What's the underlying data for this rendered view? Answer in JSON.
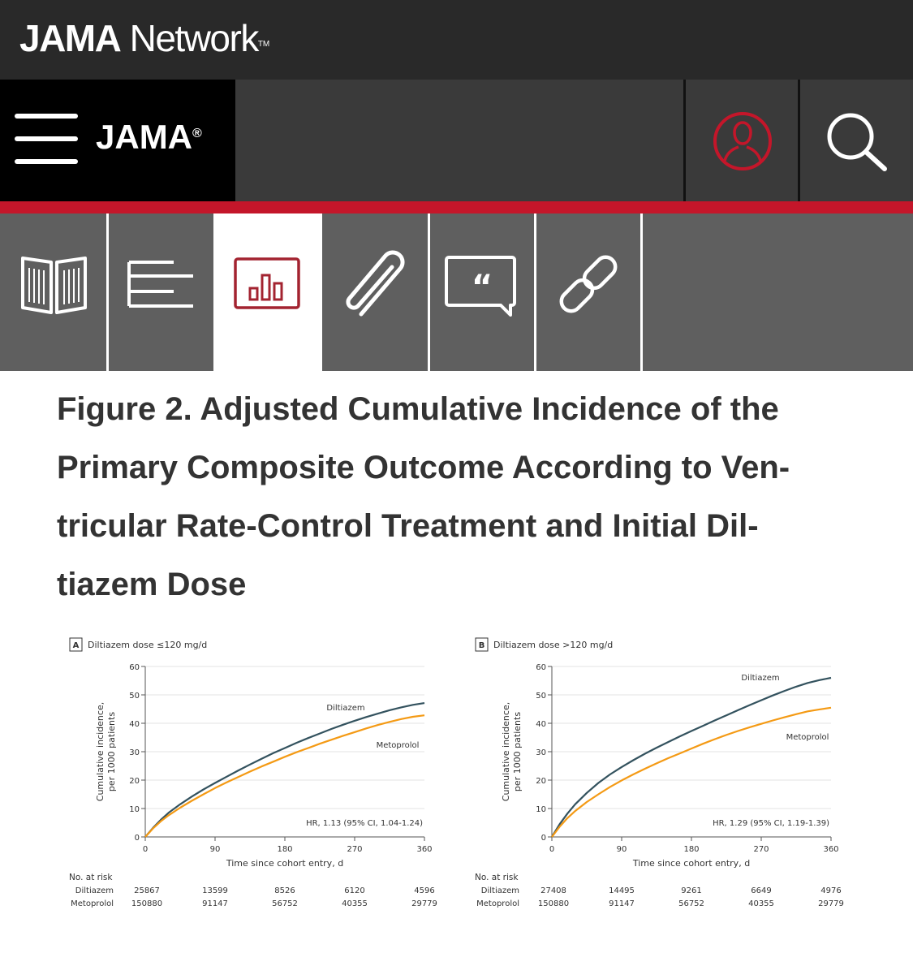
{
  "brand": {
    "bold": "JAMA",
    "rest": " Network",
    "tm": "TM"
  },
  "nav": {
    "journal": "JAMA",
    "journal_mark": "®"
  },
  "tabs": [
    {
      "name": "tab-article",
      "icon": "open-book-icon"
    },
    {
      "name": "tab-sections",
      "icon": "list-lines-icon"
    },
    {
      "name": "tab-figures",
      "icon": "bar-chart-icon",
      "active": true
    },
    {
      "name": "tab-supplements",
      "icon": "paperclip-icon"
    },
    {
      "name": "tab-comments",
      "icon": "quote-bubble-icon"
    },
    {
      "name": "tab-links",
      "icon": "chain-link-icon"
    }
  ],
  "figure": {
    "title_lines": [
      "Figure 2.  Adjusted Cumulative Incidence of the",
      "Primary Composite Outcome According to Ven-",
      "tricular Rate-Control Treatment and Initial Dil-",
      "tiazem Dose"
    ]
  },
  "chart_data": [
    {
      "type": "line",
      "panel": "A",
      "title": "Diltiazem dose ≤120 mg/d",
      "xlabel": "Time since cohort entry, d",
      "ylabel_lines": [
        "Cumulative incidence,",
        "per 1000 patients"
      ],
      "xlim": [
        0,
        360
      ],
      "ylim": [
        0,
        60
      ],
      "xticks": [
        0,
        90,
        180,
        270,
        360
      ],
      "yticks": [
        0,
        10,
        20,
        30,
        40,
        50,
        60
      ],
      "x": [
        0,
        10,
        20,
        30,
        45,
        60,
        75,
        90,
        105,
        120,
        135,
        150,
        165,
        180,
        195,
        210,
        225,
        240,
        255,
        270,
        285,
        300,
        315,
        330,
        345,
        360
      ],
      "series": [
        {
          "name": "Diltiazem",
          "color": "#33525e",
          "values": [
            0,
            3.2,
            6.0,
            8.5,
            11.5,
            14.2,
            16.7,
            19.0,
            21.2,
            23.4,
            25.5,
            27.5,
            29.5,
            31.3,
            33.1,
            34.8,
            36.4,
            38.0,
            39.5,
            40.9,
            42.2,
            43.4,
            44.6,
            45.6,
            46.5,
            47.1
          ]
        },
        {
          "name": "Metoprolol",
          "color": "#f49a14",
          "values": [
            0,
            3.0,
            5.5,
            7.6,
            10.3,
            12.7,
            15.0,
            17.2,
            19.2,
            21.1,
            23.0,
            24.8,
            26.5,
            28.2,
            29.8,
            31.3,
            32.8,
            34.2,
            35.6,
            36.9,
            38.2,
            39.4,
            40.5,
            41.5,
            42.3,
            42.8
          ]
        }
      ],
      "series_labels": [
        "Diltiazem",
        "Metoprolol"
      ],
      "annotation": "HR, 1.13 (95% CI, 1.04-1.24)",
      "risk_table": {
        "header": "No. at risk",
        "rows": [
          {
            "label": "Diltiazem",
            "values": [
              "25867",
              "13599",
              "8526",
              "6120",
              "4596"
            ]
          },
          {
            "label": "Metoprolol",
            "values": [
              "150880",
              "91147",
              "56752",
              "40355",
              "29779"
            ]
          }
        ]
      }
    },
    {
      "type": "line",
      "panel": "B",
      "title": "Diltiazem dose >120 mg/d",
      "xlabel": "Time since cohort entry, d",
      "ylabel_lines": [
        "Cumulative incidence,",
        "per 1000 patients"
      ],
      "xlim": [
        0,
        360
      ],
      "ylim": [
        0,
        60
      ],
      "xticks": [
        0,
        90,
        180,
        270,
        360
      ],
      "yticks": [
        0,
        10,
        20,
        30,
        40,
        50,
        60
      ],
      "x": [
        0,
        10,
        20,
        30,
        45,
        60,
        75,
        90,
        105,
        120,
        135,
        150,
        165,
        180,
        195,
        210,
        225,
        240,
        255,
        270,
        285,
        300,
        315,
        330,
        345,
        360
      ],
      "series": [
        {
          "name": "Diltiazem",
          "color": "#33525e",
          "values": [
            0,
            4.5,
            8.2,
            11.5,
            15.5,
            19.0,
            22.0,
            24.6,
            27.0,
            29.3,
            31.4,
            33.4,
            35.4,
            37.3,
            39.1,
            41.0,
            42.8,
            44.6,
            46.4,
            48.1,
            49.8,
            51.4,
            52.9,
            54.2,
            55.2,
            56.0
          ]
        },
        {
          "name": "Metoprolol",
          "color": "#f49a14",
          "values": [
            0,
            3.6,
            6.6,
            9.1,
            12.3,
            15.0,
            17.6,
            19.9,
            22.0,
            24.0,
            25.9,
            27.7,
            29.4,
            31.1,
            32.8,
            34.4,
            35.9,
            37.3,
            38.6,
            39.8,
            41.0,
            42.1,
            43.2,
            44.2,
            44.9,
            45.5
          ]
        }
      ],
      "series_labels": [
        "Diltiazem",
        "Metoprolol"
      ],
      "annotation": "HR, 1.29 (95% CI, 1.19-1.39)",
      "risk_table": {
        "header": "No. at risk",
        "rows": [
          {
            "label": "Diltiazem",
            "values": [
              "27408",
              "14495",
              "9261",
              "6649",
              "4976"
            ]
          },
          {
            "label": "Metoprolol",
            "values": [
              "150880",
              "91147",
              "56752",
              "40355",
              "29779"
            ]
          }
        ]
      }
    }
  ]
}
